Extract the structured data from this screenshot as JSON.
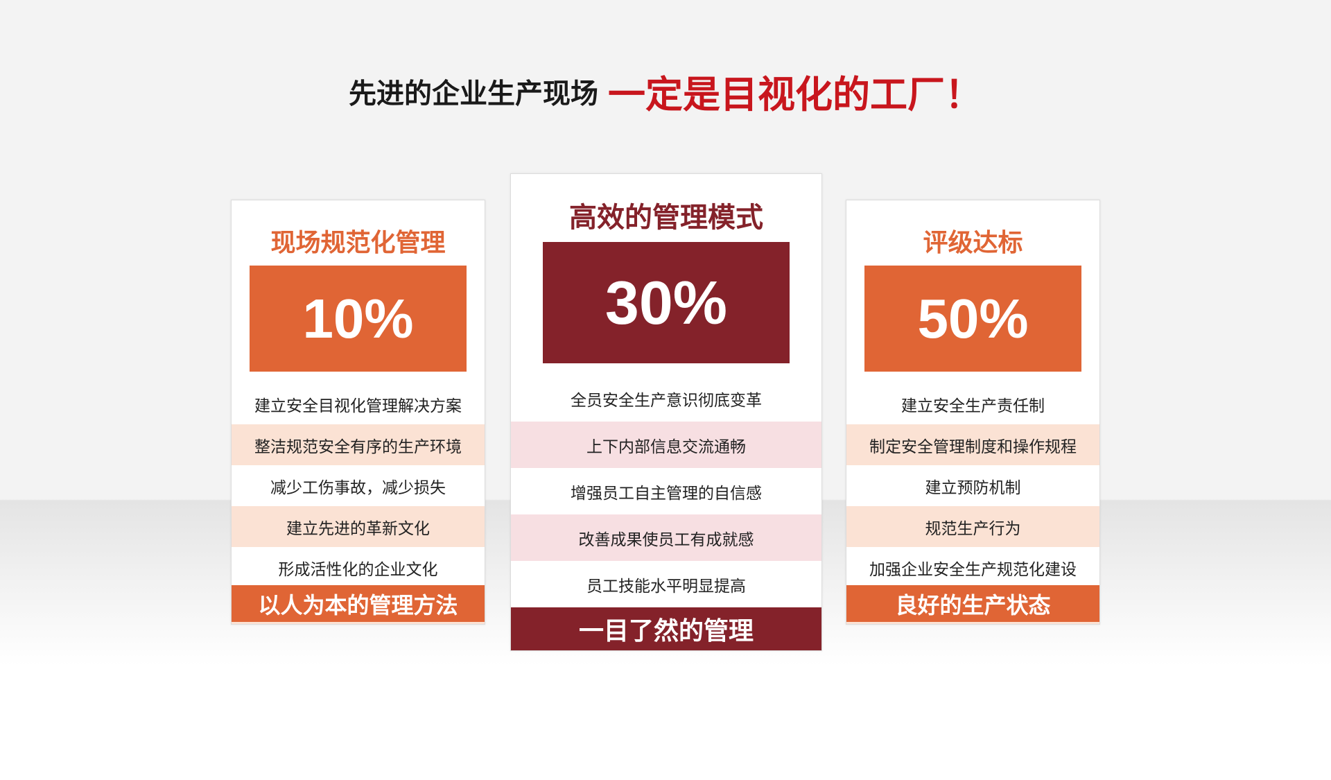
{
  "headline": {
    "part1": "先进的企业生产现场",
    "part2": "一定是目视化的工厂！"
  },
  "colors": {
    "orange": "#e06535",
    "dark_red": "#84222a",
    "title_red": "#c8161d",
    "peach": "#fbe2d4",
    "pink": "#f7dfe2"
  },
  "cards": [
    {
      "title": "现场规范化管理",
      "percent": "10%",
      "items": [
        "建立安全目视化管理解决方案",
        "整洁规范安全有序的生产环境",
        "减少工伤事故，减少损失",
        "建立先进的革新文化",
        "形成活性化的企业文化"
      ],
      "footer": "以人为本的管理方法"
    },
    {
      "title": "高效的管理模式",
      "percent": "30%",
      "items": [
        "全员安全生产意识彻底变革",
        "上下内部信息交流通畅",
        "增强员工自主管理的自信感",
        "改善成果使员工有成就感",
        "员工技能水平明显提高"
      ],
      "footer": "一目了然的管理"
    },
    {
      "title": "评级达标",
      "percent": "50%",
      "items": [
        "建立安全生产责任制",
        "制定安全管理制度和操作规程",
        "建立预防机制",
        "规范生产行为",
        "加强企业安全生产规范化建设"
      ],
      "footer": "良好的生产状态"
    }
  ]
}
